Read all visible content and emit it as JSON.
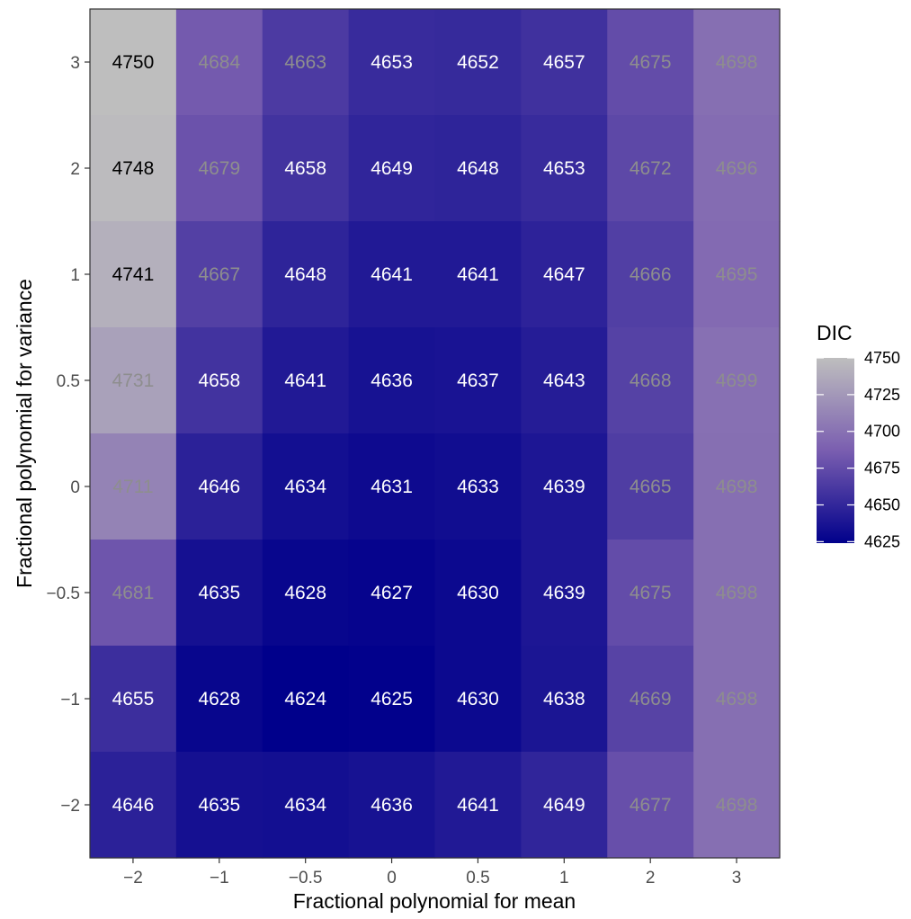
{
  "chart_data": {
    "type": "heatmap",
    "title": "",
    "xlabel": "Fractional polynomial for mean",
    "ylabel": "Fractional polynomial for variance",
    "x_categories": [
      "−2",
      "−1",
      "−0.5",
      "0",
      "0.5",
      "1",
      "2",
      "3"
    ],
    "y_categories": [
      "−2",
      "−1",
      "−0.5",
      "0",
      "0.5",
      "1",
      "2",
      "3"
    ],
    "values_by_y": {
      "3": [
        4750,
        4684,
        4663,
        4653,
        4652,
        4657,
        4675,
        4698
      ],
      "2": [
        4748,
        4679,
        4658,
        4649,
        4648,
        4653,
        4672,
        4696
      ],
      "1": [
        4741,
        4667,
        4648,
        4641,
        4641,
        4647,
        4666,
        4695
      ],
      "0.5": [
        4731,
        4658,
        4641,
        4636,
        4637,
        4643,
        4668,
        4699
      ],
      "0": [
        4711,
        4646,
        4634,
        4631,
        4633,
        4639,
        4665,
        4698
      ],
      "-0.5": [
        4681,
        4635,
        4628,
        4627,
        4630,
        4639,
        4675,
        4698
      ],
      "-1": [
        4655,
        4628,
        4624,
        4625,
        4630,
        4638,
        4669,
        4698
      ],
      "-2": [
        4646,
        4635,
        4634,
        4636,
        4641,
        4649,
        4677,
        4698
      ]
    },
    "y_order_top_to_bottom": [
      "3",
      "2",
      "1",
      "0.5",
      "0",
      "-0.5",
      "-1",
      "-2"
    ],
    "y_tick_labels_top_to_bottom": [
      "3",
      "2",
      "1",
      "0.5",
      "0",
      "−0.5",
      "−1",
      "−2"
    ],
    "legend": {
      "title": "DIC",
      "ticks": [
        4750,
        4725,
        4700,
        4675,
        4650,
        4625
      ],
      "range": [
        4624,
        4750
      ],
      "placement": "right"
    },
    "colors": {
      "low": "#00008b",
      "mid": "#7a5eb0",
      "high": "#bebebe",
      "text_low": "#ffffff",
      "text_mid": "#8e8e8e",
      "text_high": "#000000"
    },
    "grid": false
  }
}
